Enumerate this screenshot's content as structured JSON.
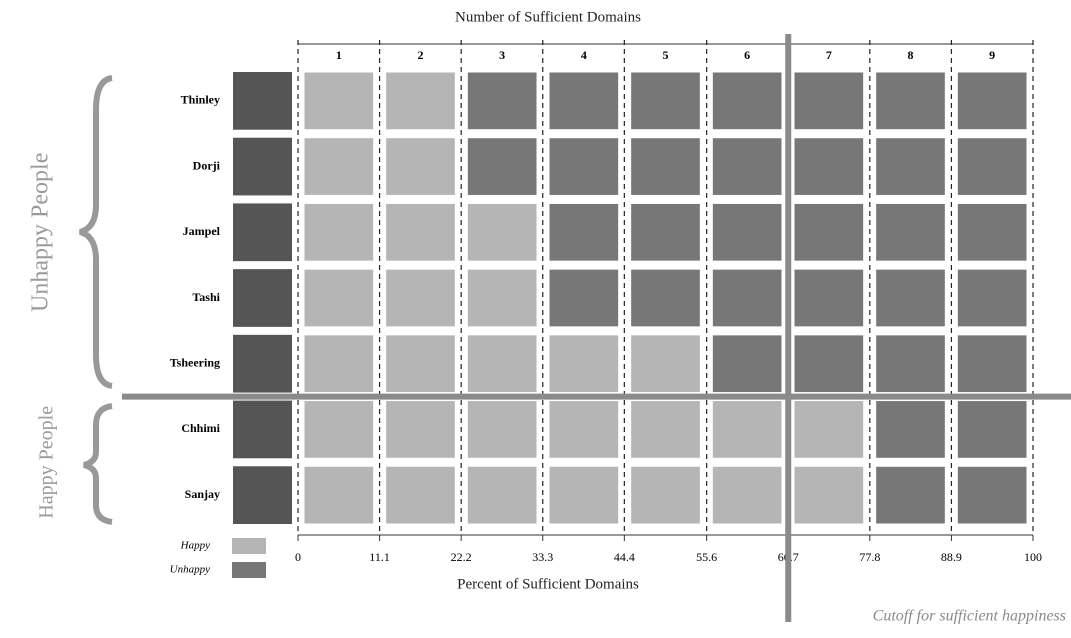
{
  "chart_data": {
    "type": "grid",
    "title": "Number of Sufficient Domains",
    "x_label": "Percent of Sufficient Domains",
    "categories": [
      "Thinley",
      "Dorji",
      "Jampel",
      "Tashi",
      "Tsheering",
      "Chhimi",
      "Sanjay"
    ],
    "values": [
      2,
      2,
      3,
      3,
      5,
      7,
      7
    ],
    "x2lim": [
      0.5,
      9.5
    ],
    "x2ticks": [
      1,
      2,
      3,
      4,
      5,
      6,
      7,
      8,
      9
    ],
    "xlim": [
      0,
      100
    ],
    "xticks": [
      0,
      11.1,
      22.2,
      33.3,
      44.4,
      55.6,
      66.7,
      77.8,
      88.9,
      100
    ],
    "groups": [
      "Unhappy People",
      "Happy People"
    ],
    "legend": [
      {
        "name": "Happy",
        "color": "#b5b5b5"
      },
      {
        "name": "Unhappy",
        "color": "#777777"
      }
    ],
    "cutoff": {
      "value": 66.7,
      "label": "Cutoff for sufficient happiness"
    }
  }
}
